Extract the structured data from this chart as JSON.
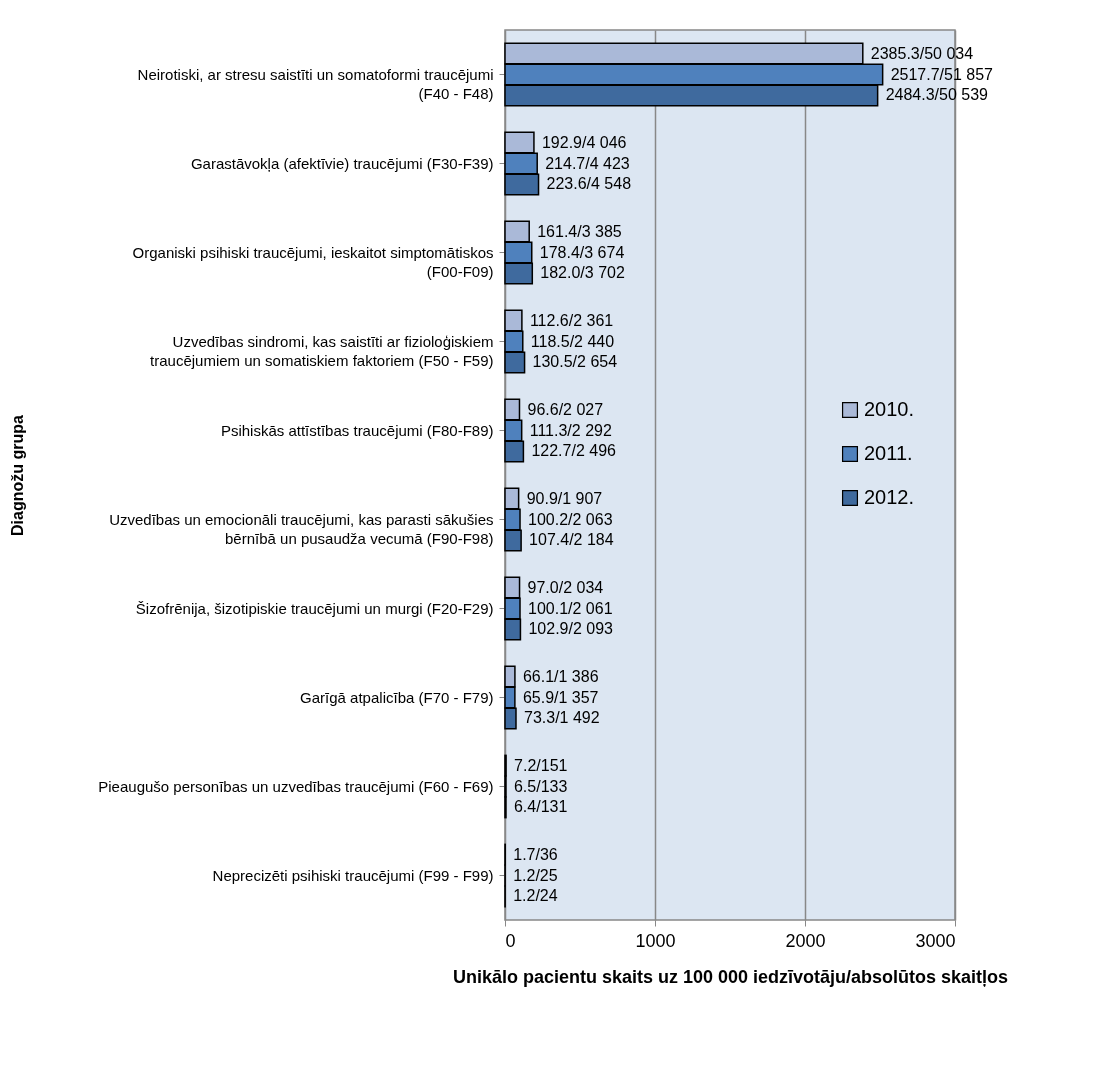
{
  "chart_data": {
    "type": "bar",
    "orientation": "horizontal",
    "xlabel": "Unikālo pacientu skaits uz 100 000 iedzīvotāju/absolūtos skaitļos",
    "ylabel": "Diagnožu grupa",
    "categories": [
      "Neirotiski, ar stresu saistīti un somatoformi traucējumi (F40 - F48)",
      "Garastāvokļa (afektīvie) traucējumi (F30-F39)",
      "Organiski psihiski traucējumi, ieskaitot simptomātiskos (F00-F09)",
      "Uzvedības sindromi, kas saistīti ar fizioloģiskiem traucējumiem un somatiskiem faktoriem (F50 - F59)",
      "Psihiskās attīstības traucējumi (F80-F89)",
      "Uzvedības un emocionāli traucējumi, kas parasti sākušies bērnībā un pusaudža vecumā (F90-F98)",
      "Šizofrēnija, šizotipiskie traucējumi un murgi (F20-F29)",
      "Garīgā atpalicība (F70 - F79)",
      "Pieaugušo personības un uzvedības traucējumi (F60 - F69)",
      "Neprecizēti psihiski traucējumi (F99 - F99)"
    ],
    "series": [
      {
        "name": "2010.",
        "color": "#aab9d8",
        "values": [
          2385.3,
          192.9,
          161.4,
          112.6,
          96.6,
          90.9,
          97.0,
          66.1,
          7.2,
          1.7
        ],
        "value_labels": [
          "2385.3/50 034",
          "192.9/4 046",
          "161.4/3 385",
          "112.6/2 361",
          "96.6/2 027",
          "90.9/1 907",
          "97.0/2 034",
          "66.1/1 386",
          "7.2/151",
          "1.7/36"
        ]
      },
      {
        "name": "2011.",
        "color": "#4f81bd",
        "values": [
          2517.7,
          214.7,
          178.4,
          118.5,
          111.3,
          100.2,
          100.1,
          65.9,
          6.5,
          1.2
        ],
        "value_labels": [
          "2517.7/51 857",
          "214.7/4 423",
          "178.4/3 674",
          "118.5/2 440",
          "111.3/2 292",
          "100.2/2 063",
          "100.1/2 061",
          "65.9/1 357",
          "6.5/133",
          "1.2/25"
        ]
      },
      {
        "name": "2012.",
        "color": "#3f6a9e",
        "values": [
          2484.3,
          223.6,
          182.0,
          130.5,
          122.7,
          107.4,
          102.9,
          73.3,
          6.4,
          1.2
        ],
        "value_labels": [
          "2484.3/50 539",
          "223.6/4 548",
          "182.0/3 702",
          "130.5/2 654",
          "122.7/2 496",
          "107.4/2 184",
          "102.9/2 093",
          "73.3/1 492",
          "6.4/131",
          "1.2/24"
        ]
      }
    ],
    "xlim": [
      0,
      3000
    ],
    "xticks": [
      0,
      1000,
      2000,
      3000
    ],
    "grid": "x",
    "legend": "right"
  }
}
